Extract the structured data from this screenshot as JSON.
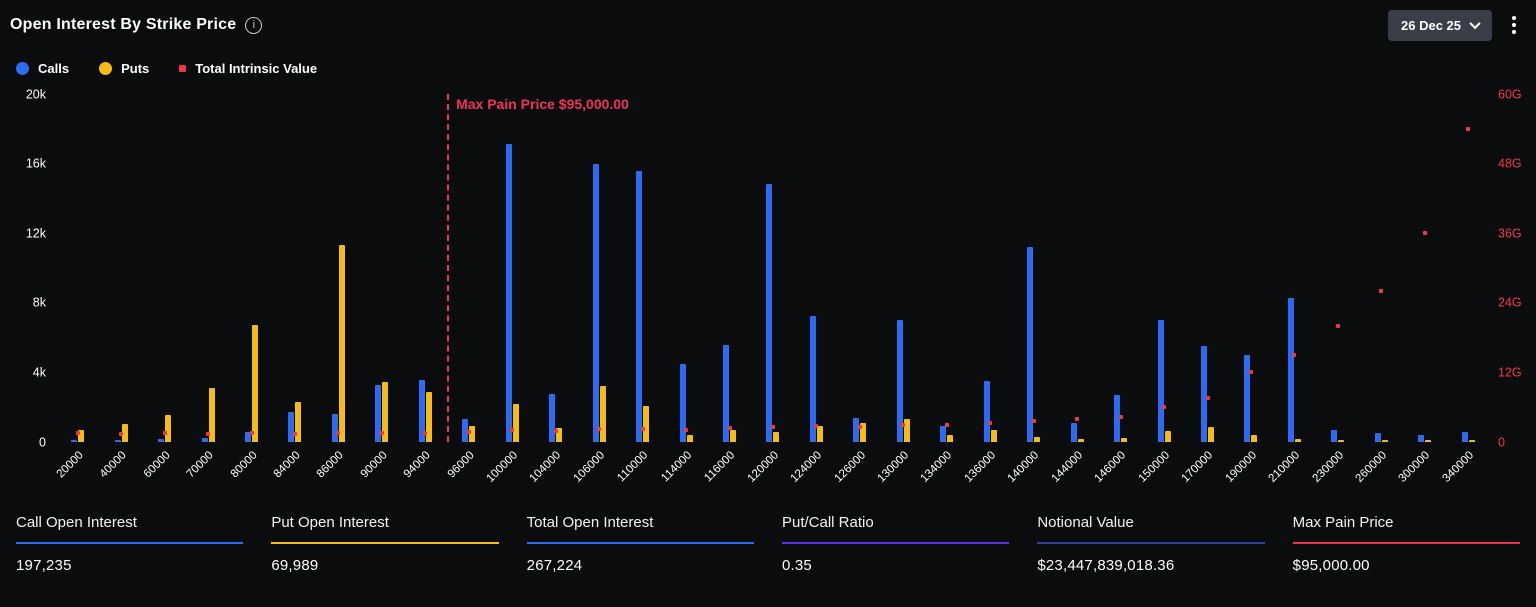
{
  "header": {
    "title": "Open Interest By Strike Price",
    "date_selector": "26 Dec 25"
  },
  "legend": [
    {
      "label": "Calls",
      "color": "#2d6bf3",
      "shape": "circle"
    },
    {
      "label": "Puts",
      "color": "#f7bb17",
      "shape": "circle"
    },
    {
      "label": "Total Intrinsic Value",
      "color": "#f23645",
      "shape": "square"
    }
  ],
  "chart_data": {
    "type": "bar",
    "title": "Open Interest By Strike Price",
    "grid": false,
    "legend_position": "top-left",
    "categories": [
      "20000",
      "40000",
      "60000",
      "70000",
      "80000",
      "84000",
      "86000",
      "90000",
      "94000",
      "96000",
      "100000",
      "104000",
      "106000",
      "110000",
      "114000",
      "116000",
      "120000",
      "124000",
      "126000",
      "130000",
      "134000",
      "136000",
      "140000",
      "144000",
      "146000",
      "150000",
      "170000",
      "190000",
      "210000",
      "230000",
      "260000",
      "300000",
      "340000"
    ],
    "series": [
      {
        "name": "Calls",
        "type": "bar",
        "axis": "left",
        "color": "#2d6bf3",
        "values": [
          60,
          100,
          150,
          250,
          600,
          1700,
          1600,
          3300,
          3550,
          1300,
          17100,
          2750,
          16000,
          15600,
          4500,
          5600,
          14850,
          7250,
          1400,
          7000,
          900,
          3500,
          11200,
          1100,
          2700,
          7000,
          5500,
          5000,
          8300,
          700,
          500,
          400,
          550
        ]
      },
      {
        "name": "Puts",
        "type": "bar",
        "axis": "left",
        "color": "#f7bb17",
        "values": [
          700,
          1050,
          1550,
          3100,
          6700,
          2300,
          11350,
          3450,
          2850,
          900,
          2200,
          800,
          3200,
          2050,
          400,
          700,
          550,
          900,
          1100,
          1300,
          400,
          700,
          300,
          200,
          250,
          650,
          850,
          400,
          150,
          100,
          80,
          60,
          40
        ]
      },
      {
        "name": "Total Intrinsic Value",
        "type": "scatter",
        "axis": "right",
        "unit": "G",
        "color": "#f23645",
        "values": [
          1.6,
          1.35,
          1.5,
          1.3,
          1.5,
          1.4,
          1.5,
          1.6,
          1.5,
          1.7,
          2.0,
          1.9,
          2.2,
          2.3,
          2.0,
          2.4,
          2.6,
          2.8,
          2.5,
          3.0,
          2.9,
          3.3,
          3.6,
          4.0,
          4.3,
          6.0,
          7.5,
          12.0,
          15.0,
          20.0,
          26.0,
          36.0,
          54.0
        ]
      }
    ],
    "left_axis": {
      "ticks": [
        "0",
        "4k",
        "8k",
        "12k",
        "16k",
        "20k"
      ],
      "max": 20000
    },
    "right_axis": {
      "ticks": [
        "0",
        "12G",
        "24G",
        "36G",
        "48G",
        "60G"
      ],
      "max": 60
    },
    "annotation": {
      "label": "Max Pain Price $95,000.00",
      "value": "$95,000.00",
      "left_of_category": "96000",
      "color": "#f0325a"
    }
  },
  "stats": [
    {
      "label": "Call Open Interest",
      "value": "197,235",
      "accent": "#2d6bf3"
    },
    {
      "label": "Put Open Interest",
      "value": "69,989",
      "accent": "#f7bb17"
    },
    {
      "label": "Total Open Interest",
      "value": "267,224",
      "accent": "#2d6bf3"
    },
    {
      "label": "Put/Call Ratio",
      "value": "0.35",
      "accent": "#5f33e1"
    },
    {
      "label": "Notional Value",
      "value": "$23,447,839,018.36",
      "accent": "#2e3f9f"
    },
    {
      "label": "Max Pain Price",
      "value": "$95,000.00",
      "accent": "#e8304f"
    }
  ]
}
